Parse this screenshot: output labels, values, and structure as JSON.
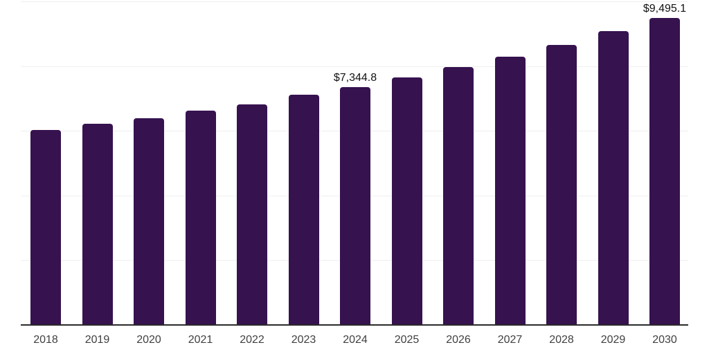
{
  "chart_data": {
    "type": "bar",
    "title": "",
    "xlabel": "",
    "ylabel": "",
    "categories": [
      "2018",
      "2019",
      "2020",
      "2021",
      "2022",
      "2023",
      "2024",
      "2025",
      "2026",
      "2027",
      "2028",
      "2029",
      "2030"
    ],
    "values": [
      6020,
      6210,
      6390,
      6620,
      6820,
      7110,
      7344.8,
      7640,
      7960,
      8300,
      8650,
      9080,
      9495.1
    ],
    "data_labels": {
      "2024": "$7,344.8",
      "2030": "$9,495.1"
    },
    "ylim": [
      0,
      10000
    ],
    "gridline_values": [
      0,
      2000,
      4000,
      6000,
      8000,
      10000
    ],
    "grid": "horizontal-only",
    "legend": "none",
    "y_axis_tick_labels": "none",
    "bar_color": "#36124F",
    "axis_color": "#2a2a2a",
    "gridline_color": "#efefef",
    "tick_label_color": "#404040",
    "data_label_color": "#111111"
  }
}
